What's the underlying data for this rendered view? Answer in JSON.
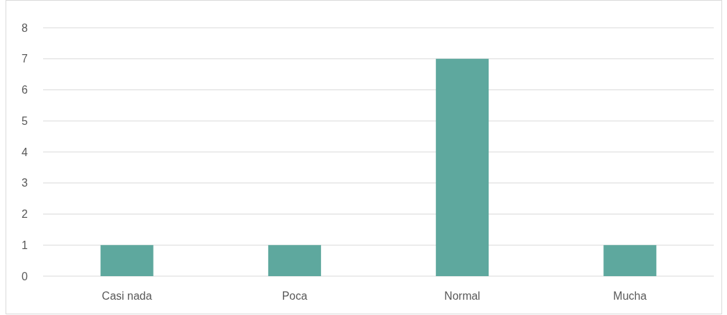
{
  "chart_data": {
    "type": "bar",
    "categories": [
      "Casi nada",
      "Poca",
      "Normal",
      "Mucha"
    ],
    "values": [
      1,
      1,
      7,
      1
    ],
    "color": "#5ea89e",
    "ylim": [
      0,
      8
    ],
    "yticks": [
      0,
      1,
      2,
      3,
      4,
      5,
      6,
      7,
      8
    ],
    "grid": "y"
  }
}
